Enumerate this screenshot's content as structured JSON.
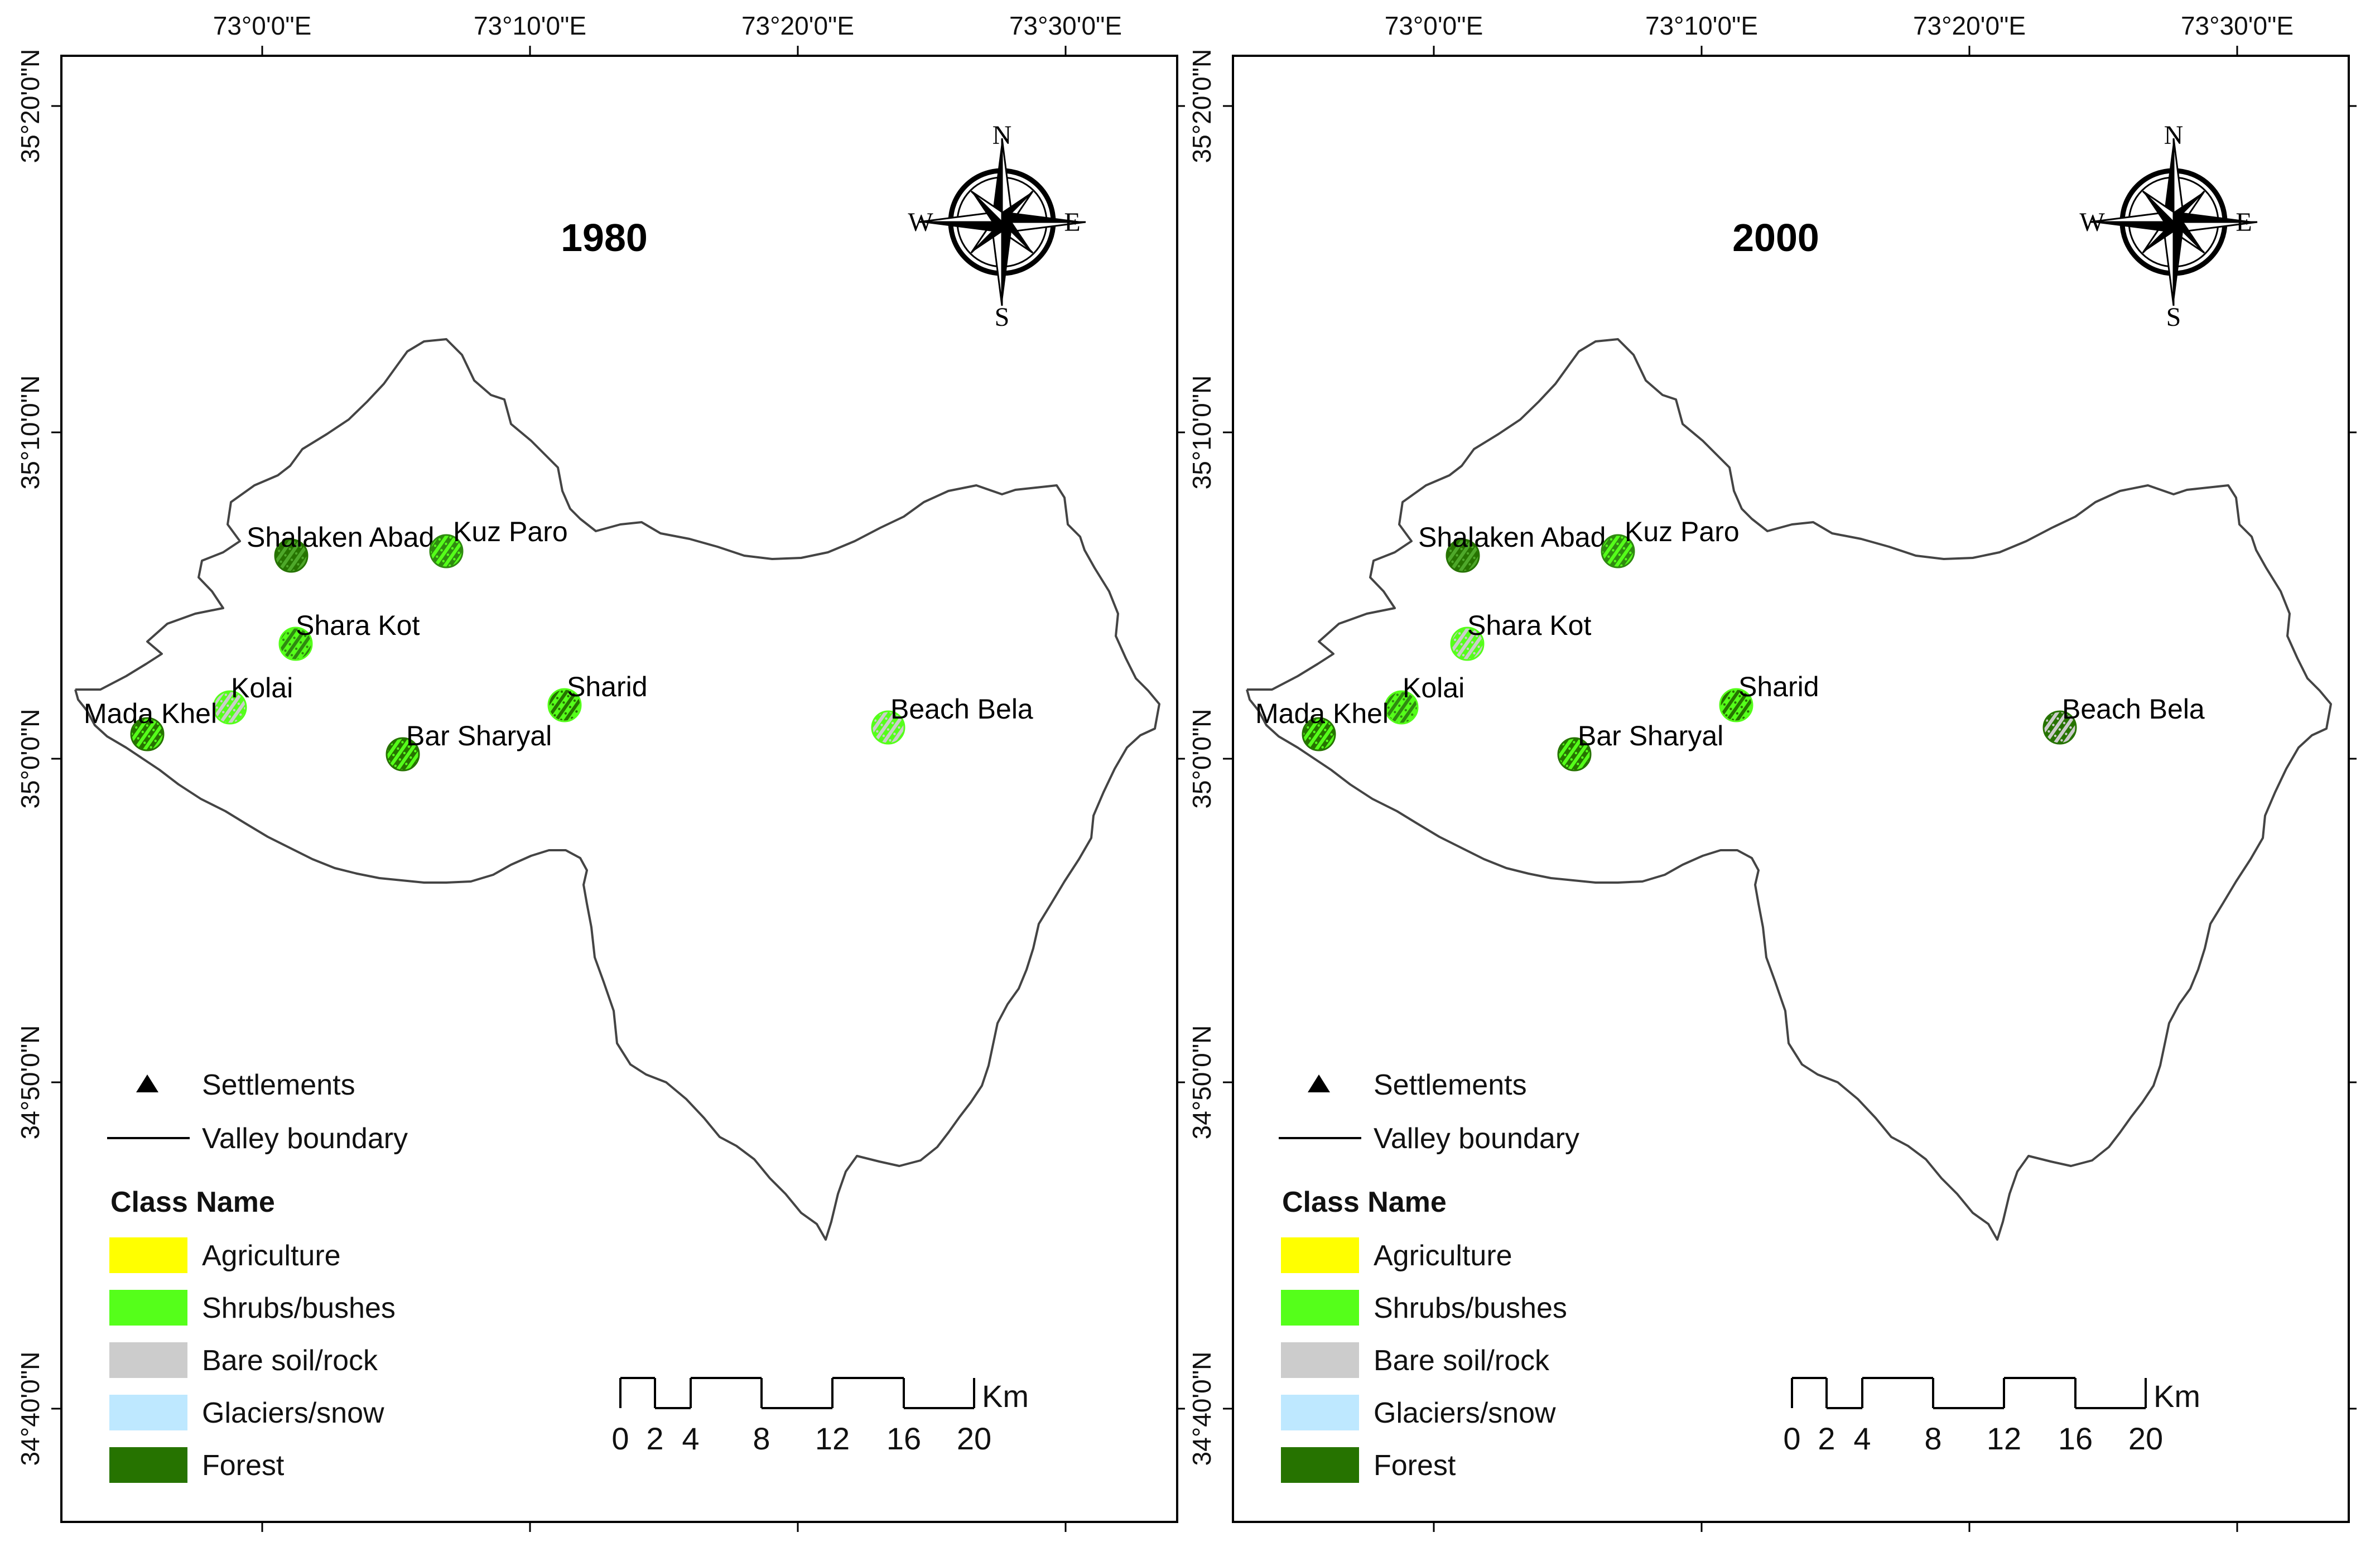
{
  "lon_labels": [
    "73°0'0\"E",
    "73°10'0\"E",
    "73°20'0\"E",
    "73°30'0\"E"
  ],
  "lat_labels": [
    "35°20'0\"N",
    "35°10'0\"N",
    "35°0'0\"N",
    "34°50'0\"N",
    "34°40'0\"N"
  ],
  "compass": {
    "n": "N",
    "s": "S",
    "e": "E",
    "w": "W"
  },
  "legend": {
    "settlements": "Settlements",
    "boundary": "Valley boundary",
    "class_header": "Class Name",
    "classes": [
      {
        "label": "Agriculture",
        "color": "#ffff00"
      },
      {
        "label": " Shrubs/bushes",
        "color": "#55ff1a"
      },
      {
        "label": "Bare soil/rock",
        "color": "#cccccc"
      },
      {
        "label": "Glaciers/snow",
        "color": "#bee8ff"
      },
      {
        "label": "Forest",
        "color": "#267300"
      }
    ]
  },
  "scale_bar": {
    "unit": "Km",
    "ticks": [
      "0",
      "2",
      "4",
      "8",
      "12",
      "16",
      "20"
    ]
  },
  "maps": [
    {
      "year": "1980",
      "settlements": [
        {
          "name": "Shalaken Abad",
          "cover": [
            "#267300",
            "#4ea82a"
          ]
        },
        {
          "name": "Kuz Paro",
          "cover": [
            "#2f8a10",
            "#55ff1a"
          ]
        },
        {
          "name": "Shara Kot",
          "cover": [
            "#55ff1a",
            "#2f8a10"
          ]
        },
        {
          "name": "Kolai",
          "cover": [
            "#55ff1a",
            "#cccccc"
          ]
        },
        {
          "name": "Mada Khel",
          "cover": [
            "#267300",
            "#55ff1a"
          ]
        },
        {
          "name": "Sharid",
          "cover": [
            "#55ff1a",
            "#267300"
          ]
        },
        {
          "name": "Bar Sharyal",
          "cover": [
            "#267300",
            "#55ff1a"
          ]
        },
        {
          "name": "Beach Bela",
          "cover": [
            "#55ff1a",
            "#cccccc"
          ]
        }
      ]
    },
    {
      "year": "2000",
      "settlements": [
        {
          "name": "Shalaken Abad",
          "cover": [
            "#267300",
            "#4ea82a"
          ]
        },
        {
          "name": "Kuz Paro",
          "cover": [
            "#2f8a10",
            "#55ff1a"
          ]
        },
        {
          "name": "Shara Kot",
          "cover": [
            "#55ff1a",
            "#cccccc"
          ]
        },
        {
          "name": "Kolai",
          "cover": [
            "#55ff1a",
            "#2f8a10"
          ]
        },
        {
          "name": "Mada Khel",
          "cover": [
            "#267300",
            "#55ff1a"
          ]
        },
        {
          "name": "Sharid",
          "cover": [
            "#55ff1a",
            "#267300"
          ]
        },
        {
          "name": "Bar Sharyal",
          "cover": [
            "#267300",
            "#55ff1a"
          ]
        },
        {
          "name": "Beach Bela",
          "cover": [
            "#267300",
            "#cccccc"
          ]
        }
      ]
    }
  ]
}
